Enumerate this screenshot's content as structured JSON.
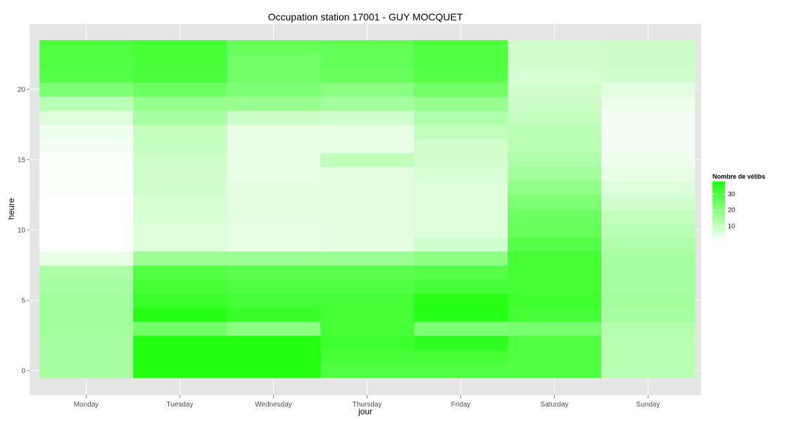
{
  "chart_data": {
    "type": "heatmap",
    "title": "Occupation station 17001 - GUY MOCQUET",
    "xlabel": "jour",
    "ylabel": "heure",
    "x_categories": [
      "Monday",
      "Tuesday",
      "Wednesday",
      "Thursday",
      "Friday",
      "Saturday",
      "Sunday"
    ],
    "y_ticks": [
      0,
      5,
      10,
      15,
      20
    ],
    "y_range": [
      -0.5,
      23.5
    ],
    "hours": [
      0,
      1,
      2,
      3,
      4,
      5,
      6,
      7,
      8,
      9,
      10,
      11,
      12,
      13,
      14,
      15,
      16,
      17,
      18,
      19,
      20,
      21,
      22,
      23
    ],
    "values": [
      [
        15,
        15,
        15,
        16,
        16,
        16,
        15,
        14,
        4,
        0,
        0,
        0,
        0,
        1,
        1,
        1,
        2,
        3,
        6,
        12,
        22,
        29,
        30,
        30
      ],
      [
        38,
        38,
        38,
        24,
        37,
        34,
        32,
        30,
        17,
        6,
        6,
        7,
        7,
        8,
        8,
        9,
        10,
        10,
        15,
        18,
        25,
        31,
        32,
        32
      ],
      [
        38,
        38,
        38,
        20,
        34,
        32,
        30,
        28,
        17,
        4,
        4,
        5,
        5,
        5,
        4,
        4,
        4,
        4,
        9,
        18,
        22,
        24,
        24,
        26
      ],
      [
        30,
        32,
        33,
        32,
        32,
        32,
        30,
        28,
        17,
        5,
        5,
        5,
        5,
        5,
        5,
        11,
        4,
        4,
        8,
        16,
        20,
        26,
        27,
        27
      ],
      [
        30,
        32,
        36,
        22,
        37,
        37,
        32,
        29,
        20,
        8,
        6,
        6,
        6,
        6,
        7,
        8,
        8,
        10,
        14,
        18,
        24,
        29,
        30,
        30
      ],
      [
        30,
        30,
        30,
        23,
        32,
        33,
        32,
        32,
        32,
        29,
        26,
        25,
        22,
        19,
        16,
        14,
        12,
        12,
        10,
        9,
        8,
        7,
        8,
        8
      ],
      [
        12,
        12,
        12,
        13,
        15,
        16,
        15,
        15,
        15,
        14,
        12,
        10,
        8,
        6,
        4,
        3,
        2,
        2,
        2,
        3,
        5,
        8,
        9,
        9
      ]
    ],
    "color_scale": {
      "low": "#ffffff",
      "high": "#22ff11",
      "min": 0,
      "max": 38
    },
    "legend": {
      "title": "Nombre de vélibs",
      "ticks": [
        10,
        20,
        30
      ],
      "placement": "right"
    },
    "grid": true,
    "panel_background": "#e5e5e5",
    "grid_color": "#ffffff"
  }
}
